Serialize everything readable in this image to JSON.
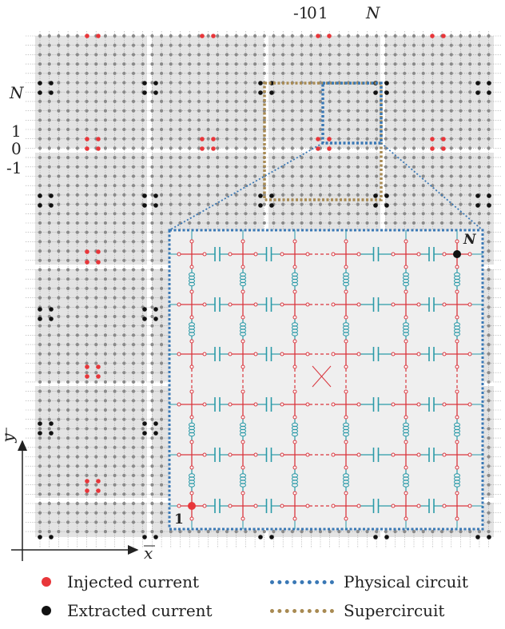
{
  "axis_labels": {
    "top_minus1": "-1",
    "top_0": "0",
    "top_1": "1",
    "top_N": "N",
    "left_N": "N",
    "left_1": "1",
    "left_0": "0",
    "left_minus1": "-1",
    "x_axis": "x",
    "y_axis": "y"
  },
  "inset_labels": {
    "node_N": "N",
    "node_1": "1"
  },
  "legend": {
    "injected": "Injected current",
    "extracted": "Extracted current",
    "physical": "Physical circuit",
    "supercircuit": "Supercircuit"
  },
  "colors": {
    "injected": "#e8363a",
    "extracted": "#111111",
    "physical": "#3a78b5",
    "supercircuit": "#a88a52",
    "inset_wire": "#d9363e",
    "inset_component": "#2a9aa8",
    "grid_node": "#8a8a8a",
    "tile_bg": "#d9d9d9"
  }
}
